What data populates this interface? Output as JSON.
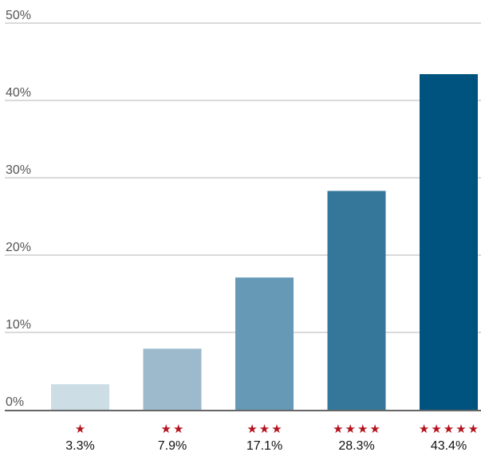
{
  "chart_data": {
    "type": "bar",
    "categories": [
      "★",
      "★★",
      "★★★",
      "★★★★",
      "★★★★★"
    ],
    "values": [
      3.3,
      7.9,
      17.1,
      28.3,
      43.4
    ],
    "value_labels": [
      "3.3%",
      "7.9%",
      "17.1%",
      "28.3%",
      "43.4%"
    ],
    "ylim": [
      0,
      50
    ],
    "yticks": [
      0,
      10,
      20,
      30,
      40,
      50
    ],
    "ytick_labels": [
      "0%",
      "10%",
      "20%",
      "30%",
      "40%",
      "50%"
    ],
    "grid": true,
    "bar_colors": [
      "#ccdde5",
      "#9dbacd",
      "#6699b6",
      "#34779b",
      "#00537e"
    ],
    "star_color": "#b3121d",
    "gridline_color": "#b5b5b5",
    "axis_color": "#333333"
  }
}
